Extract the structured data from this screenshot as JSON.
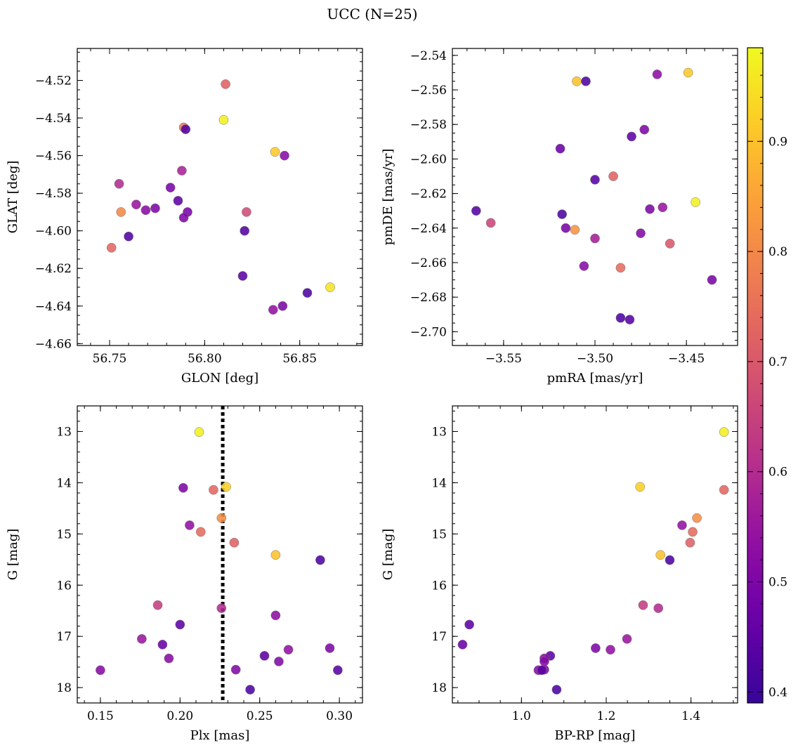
{
  "figure_title": "UCC (N=25)",
  "colorbar": {
    "cmap": "plasma",
    "range": [
      0.39,
      0.985
    ],
    "ticks": [
      0.4,
      0.5,
      0.6,
      0.7,
      0.8,
      0.9
    ],
    "tick_labels": [
      "0.4",
      "0.5",
      "0.6",
      "0.7",
      "0.8",
      "0.9"
    ]
  },
  "chart_data": [
    {
      "type": "scatter",
      "id": "glon-glat",
      "xlabel": "GLON [deg]",
      "ylabel": "GLAT [deg]",
      "xlim": [
        56.733,
        56.883
      ],
      "ylim": [
        -4.661,
        -4.503
      ],
      "y_inverted": false,
      "xticks": [
        56.75,
        56.8,
        56.85
      ],
      "xtick_labels": [
        "56.75",
        "56.80",
        "56.85"
      ],
      "xminor": 0.01,
      "yticks": [
        -4.66,
        -4.64,
        -4.62,
        -4.6,
        -4.58,
        -4.56,
        -4.54,
        -4.52
      ],
      "ytick_labels": [
        "−4.66",
        "−4.64",
        "−4.62",
        "−4.60",
        "−4.58",
        "−4.56",
        "−4.54",
        "−4.52"
      ],
      "yminor": 0.005,
      "points": [
        {
          "x": 56.811,
          "y": -4.522,
          "c": 0.72
        },
        {
          "x": 56.81,
          "y": -4.541,
          "c": 0.97
        },
        {
          "x": 56.789,
          "y": -4.545,
          "c": 0.76
        },
        {
          "x": 56.79,
          "y": -4.546,
          "c": 0.43
        },
        {
          "x": 56.837,
          "y": -4.558,
          "c": 0.91
        },
        {
          "x": 56.842,
          "y": -4.56,
          "c": 0.52
        },
        {
          "x": 56.788,
          "y": -4.568,
          "c": 0.58
        },
        {
          "x": 56.755,
          "y": -4.575,
          "c": 0.6
        },
        {
          "x": 56.782,
          "y": -4.577,
          "c": 0.49
        },
        {
          "x": 56.786,
          "y": -4.584,
          "c": 0.45
        },
        {
          "x": 56.764,
          "y": -4.586,
          "c": 0.55
        },
        {
          "x": 56.774,
          "y": -4.588,
          "c": 0.5
        },
        {
          "x": 56.769,
          "y": -4.589,
          "c": 0.52
        },
        {
          "x": 56.756,
          "y": -4.59,
          "c": 0.8
        },
        {
          "x": 56.791,
          "y": -4.59,
          "c": 0.49
        },
        {
          "x": 56.822,
          "y": -4.59,
          "c": 0.67
        },
        {
          "x": 56.789,
          "y": -4.593,
          "c": 0.5
        },
        {
          "x": 56.821,
          "y": -4.6,
          "c": 0.43
        },
        {
          "x": 56.76,
          "y": -4.603,
          "c": 0.43
        },
        {
          "x": 56.751,
          "y": -4.609,
          "c": 0.73
        },
        {
          "x": 56.82,
          "y": -4.624,
          "c": 0.45
        },
        {
          "x": 56.866,
          "y": -4.63,
          "c": 0.95
        },
        {
          "x": 56.854,
          "y": -4.633,
          "c": 0.42
        },
        {
          "x": 56.841,
          "y": -4.64,
          "c": 0.5
        },
        {
          "x": 56.836,
          "y": -4.642,
          "c": 0.54
        }
      ]
    },
    {
      "type": "scatter",
      "id": "pm",
      "xlabel": "pmRA [mas/yr]",
      "ylabel": "pmDE [mas/yr]",
      "xlim": [
        -3.578,
        -3.422
      ],
      "ylim": [
        -2.708,
        -2.536
      ],
      "y_inverted": false,
      "xticks": [
        -3.55,
        -3.5,
        -3.45
      ],
      "xtick_labels": [
        "−3.55",
        "−3.50",
        "−3.45"
      ],
      "xminor": 0.01,
      "yticks": [
        -2.7,
        -2.68,
        -2.66,
        -2.64,
        -2.62,
        -2.6,
        -2.58,
        -2.56,
        -2.54
      ],
      "ytick_labels": [
        "−2.70",
        "−2.68",
        "−2.66",
        "−2.64",
        "−2.62",
        "−2.60",
        "−2.58",
        "−2.56",
        "−2.54"
      ],
      "yminor": 0.005,
      "points": [
        {
          "x": -3.449,
          "y": -2.55,
          "c": 0.91
        },
        {
          "x": -3.466,
          "y": -2.551,
          "c": 0.53
        },
        {
          "x": -3.51,
          "y": -2.555,
          "c": 0.9
        },
        {
          "x": -3.505,
          "y": -2.555,
          "c": 0.42
        },
        {
          "x": -3.473,
          "y": -2.583,
          "c": 0.5
        },
        {
          "x": -3.48,
          "y": -2.587,
          "c": 0.45
        },
        {
          "x": -3.519,
          "y": -2.594,
          "c": 0.47
        },
        {
          "x": -3.49,
          "y": -2.61,
          "c": 0.72
        },
        {
          "x": -3.5,
          "y": -2.612,
          "c": 0.44
        },
        {
          "x": -3.445,
          "y": -2.625,
          "c": 0.97
        },
        {
          "x": -3.463,
          "y": -2.628,
          "c": 0.55
        },
        {
          "x": -3.565,
          "y": -2.63,
          "c": 0.44
        },
        {
          "x": -3.47,
          "y": -2.629,
          "c": 0.5
        },
        {
          "x": -3.518,
          "y": -2.632,
          "c": 0.42
        },
        {
          "x": -3.557,
          "y": -2.637,
          "c": 0.66
        },
        {
          "x": -3.516,
          "y": -2.64,
          "c": 0.49
        },
        {
          "x": -3.511,
          "y": -2.641,
          "c": 0.82
        },
        {
          "x": -3.475,
          "y": -2.643,
          "c": 0.51
        },
        {
          "x": -3.5,
          "y": -2.646,
          "c": 0.57
        },
        {
          "x": -3.459,
          "y": -2.649,
          "c": 0.7
        },
        {
          "x": -3.506,
          "y": -2.662,
          "c": 0.52
        },
        {
          "x": -3.486,
          "y": -2.663,
          "c": 0.74
        },
        {
          "x": -3.436,
          "y": -2.67,
          "c": 0.49
        },
        {
          "x": -3.486,
          "y": -2.692,
          "c": 0.42
        },
        {
          "x": -3.481,
          "y": -2.693,
          "c": 0.44
        }
      ]
    },
    {
      "type": "scatter",
      "id": "plx-g",
      "xlabel": "Plx [mas]",
      "ylabel": "G [mag]",
      "xlim": [
        0.1355,
        0.3145
      ],
      "ylim": [
        12.5,
        18.3
      ],
      "y_inverted": true,
      "xticks": [
        0.15,
        0.2,
        0.25,
        0.3
      ],
      "xtick_labels": [
        "0.15",
        "0.20",
        "0.25",
        "0.30"
      ],
      "xminor": 0.01,
      "yticks": [
        13,
        14,
        15,
        16,
        17,
        18
      ],
      "ytick_labels": [
        "13",
        "14",
        "15",
        "16",
        "17",
        "18"
      ],
      "yminor": 0.2,
      "vline": {
        "x": 0.2268
      },
      "points": [
        {
          "x": 0.212,
          "y": 13.01,
          "c": 0.97
        },
        {
          "x": 0.202,
          "y": 14.1,
          "c": 0.5
        },
        {
          "x": 0.221,
          "y": 14.14,
          "c": 0.73
        },
        {
          "x": 0.229,
          "y": 14.08,
          "c": 0.92
        },
        {
          "x": 0.226,
          "y": 14.69,
          "c": 0.81
        },
        {
          "x": 0.206,
          "y": 14.83,
          "c": 0.54
        },
        {
          "x": 0.213,
          "y": 14.96,
          "c": 0.74
        },
        {
          "x": 0.234,
          "y": 15.17,
          "c": 0.72
        },
        {
          "x": 0.26,
          "y": 15.41,
          "c": 0.9
        },
        {
          "x": 0.288,
          "y": 15.51,
          "c": 0.42
        },
        {
          "x": 0.186,
          "y": 16.39,
          "c": 0.64
        },
        {
          "x": 0.226,
          "y": 16.45,
          "c": 0.6
        },
        {
          "x": 0.26,
          "y": 16.59,
          "c": 0.53
        },
        {
          "x": 0.2,
          "y": 16.77,
          "c": 0.45
        },
        {
          "x": 0.176,
          "y": 17.05,
          "c": 0.55
        },
        {
          "x": 0.189,
          "y": 17.16,
          "c": 0.47
        },
        {
          "x": 0.294,
          "y": 17.23,
          "c": 0.5
        },
        {
          "x": 0.268,
          "y": 17.26,
          "c": 0.54
        },
        {
          "x": 0.253,
          "y": 17.38,
          "c": 0.45
        },
        {
          "x": 0.193,
          "y": 17.43,
          "c": 0.52
        },
        {
          "x": 0.262,
          "y": 17.49,
          "c": 0.51
        },
        {
          "x": 0.15,
          "y": 17.66,
          "c": 0.52
        },
        {
          "x": 0.235,
          "y": 17.65,
          "c": 0.51
        },
        {
          "x": 0.299,
          "y": 17.66,
          "c": 0.44
        },
        {
          "x": 0.244,
          "y": 18.04,
          "c": 0.42
        }
      ]
    },
    {
      "type": "scatter",
      "id": "cmd",
      "xlabel": "BP-RP [mag]",
      "ylabel": "G [mag]",
      "xlim": [
        0.837,
        1.51
      ],
      "ylim": [
        12.5,
        18.3
      ],
      "y_inverted": true,
      "xticks": [
        1.0,
        1.2,
        1.4
      ],
      "xtick_labels": [
        "1.0",
        "1.2",
        "1.4"
      ],
      "xminor": 0.05,
      "yticks": [
        13,
        14,
        15,
        16,
        17,
        18
      ],
      "ytick_labels": [
        "13",
        "14",
        "15",
        "16",
        "17",
        "18"
      ],
      "yminor": 0.2,
      "points": [
        {
          "x": 1.478,
          "y": 13.01,
          "c": 0.97
        },
        {
          "x": 1.28,
          "y": 14.08,
          "c": 0.92
        },
        {
          "x": 1.478,
          "y": 14.14,
          "c": 0.73
        },
        {
          "x": 1.414,
          "y": 14.69,
          "c": 0.81
        },
        {
          "x": 1.379,
          "y": 14.83,
          "c": 0.54
        },
        {
          "x": 1.404,
          "y": 14.96,
          "c": 0.74
        },
        {
          "x": 1.398,
          "y": 15.17,
          "c": 0.72
        },
        {
          "x": 1.328,
          "y": 15.41,
          "c": 0.9
        },
        {
          "x": 1.35,
          "y": 15.51,
          "c": 0.42
        },
        {
          "x": 1.287,
          "y": 16.39,
          "c": 0.64
        },
        {
          "x": 1.323,
          "y": 16.45,
          "c": 0.6
        },
        {
          "x": 0.877,
          "y": 16.77,
          "c": 0.45
        },
        {
          "x": 1.249,
          "y": 17.05,
          "c": 0.55
        },
        {
          "x": 0.861,
          "y": 17.16,
          "c": 0.47
        },
        {
          "x": 1.175,
          "y": 17.23,
          "c": 0.5
        },
        {
          "x": 1.21,
          "y": 17.26,
          "c": 0.54
        },
        {
          "x": 1.068,
          "y": 17.38,
          "c": 0.45
        },
        {
          "x": 1.054,
          "y": 17.43,
          "c": 0.52
        },
        {
          "x": 1.054,
          "y": 17.49,
          "c": 0.51
        },
        {
          "x": 1.04,
          "y": 17.66,
          "c": 0.52
        },
        {
          "x": 1.054,
          "y": 17.65,
          "c": 0.51
        },
        {
          "x": 1.048,
          "y": 17.66,
          "c": 0.44
        },
        {
          "x": 1.083,
          "y": 18.04,
          "c": 0.42
        }
      ]
    }
  ]
}
